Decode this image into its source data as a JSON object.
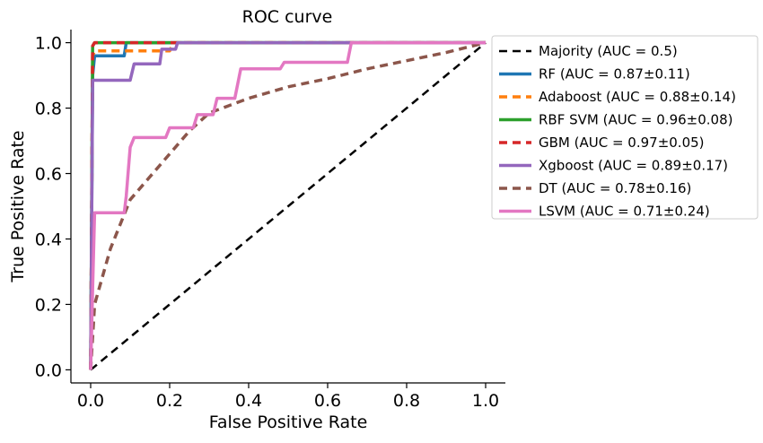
{
  "chart_data": {
    "type": "line",
    "title": "ROC curve",
    "xlabel": "False Positive Rate",
    "ylabel": "True Positive Rate",
    "xlim": [
      -0.05,
      1.05
    ],
    "ylim": [
      -0.04,
      1.04
    ],
    "xticks": [
      0.0,
      0.2,
      0.4,
      0.6,
      0.8,
      1.0
    ],
    "yticks": [
      0.0,
      0.2,
      0.4,
      0.6,
      0.8,
      1.0
    ],
    "xtick_labels": [
      "0.0",
      "0.2",
      "0.4",
      "0.6",
      "0.8",
      "1.0"
    ],
    "ytick_labels": [
      "0.0",
      "0.2",
      "0.4",
      "0.6",
      "0.8",
      "1.0"
    ],
    "grid": false,
    "legend_position": "outside-right",
    "series": [
      {
        "name": "Majority (AUC = 0.5)",
        "color": "#000000",
        "style": "dashed",
        "points": [
          [
            0,
            0
          ],
          [
            1,
            1
          ]
        ]
      },
      {
        "name": "RF (AUC = 0.87±0.11)",
        "color": "#1f77b4",
        "style": "solid",
        "points": [
          [
            0,
            0
          ],
          [
            0.005,
            0.9
          ],
          [
            0.01,
            0.96
          ],
          [
            0.085,
            0.96
          ],
          [
            0.09,
            1.0
          ],
          [
            1.0,
            1.0
          ]
        ]
      },
      {
        "name": "Adaboost (AUC = 0.88±0.14)",
        "color": "#ff7f0e",
        "style": "dashed",
        "points": [
          [
            0,
            0
          ],
          [
            0.005,
            0.96
          ],
          [
            0.01,
            0.975
          ],
          [
            0.2,
            0.975
          ],
          [
            0.21,
            1.0
          ],
          [
            1.0,
            1.0
          ]
        ]
      },
      {
        "name": "RBF SVM (AUC = 0.96±0.08)",
        "color": "#2ca02c",
        "style": "solid",
        "points": [
          [
            0,
            0
          ],
          [
            0.005,
            0.99
          ],
          [
            0.01,
            1.0
          ],
          [
            1.0,
            1.0
          ]
        ]
      },
      {
        "name": "GBM (AUC = 0.97±0.05)",
        "color": "#d62728",
        "style": "dashed",
        "points": [
          [
            0,
            0
          ],
          [
            0.005,
            0.99
          ],
          [
            0.01,
            1.0
          ],
          [
            1.0,
            1.0
          ]
        ]
      },
      {
        "name": "Xgboost (AUC = 0.89±0.17)",
        "color": "#9467bd",
        "style": "solid",
        "points": [
          [
            0,
            0
          ],
          [
            0.005,
            0.885
          ],
          [
            0.1,
            0.885
          ],
          [
            0.11,
            0.935
          ],
          [
            0.175,
            0.935
          ],
          [
            0.18,
            0.98
          ],
          [
            0.215,
            0.98
          ],
          [
            0.22,
            1.0
          ],
          [
            1.0,
            1.0
          ]
        ]
      },
      {
        "name": "DT (AUC = 0.78±0.16)",
        "color": "#8c564b",
        "style": "dashed",
        "points": [
          [
            0,
            0
          ],
          [
            0.01,
            0.2
          ],
          [
            0.05,
            0.37
          ],
          [
            0.1,
            0.52
          ],
          [
            0.15,
            0.59
          ],
          [
            0.2,
            0.66
          ],
          [
            0.25,
            0.73
          ],
          [
            0.3,
            0.785
          ],
          [
            0.4,
            0.83
          ],
          [
            0.5,
            0.865
          ],
          [
            0.6,
            0.89
          ],
          [
            0.7,
            0.92
          ],
          [
            0.8,
            0.945
          ],
          [
            0.9,
            0.97
          ],
          [
            1.0,
            1.0
          ]
        ]
      },
      {
        "name": "LSVM (AUC = 0.71±0.24)",
        "color": "#e377c2",
        "style": "solid",
        "points": [
          [
            0,
            0
          ],
          [
            0.005,
            0.25
          ],
          [
            0.01,
            0.48
          ],
          [
            0.085,
            0.48
          ],
          [
            0.09,
            0.53
          ],
          [
            0.1,
            0.68
          ],
          [
            0.11,
            0.71
          ],
          [
            0.19,
            0.71
          ],
          [
            0.2,
            0.74
          ],
          [
            0.26,
            0.74
          ],
          [
            0.27,
            0.78
          ],
          [
            0.31,
            0.78
          ],
          [
            0.32,
            0.83
          ],
          [
            0.365,
            0.83
          ],
          [
            0.38,
            0.92
          ],
          [
            0.48,
            0.92
          ],
          [
            0.49,
            0.94
          ],
          [
            0.65,
            0.94
          ],
          [
            0.66,
            1.0
          ],
          [
            1.0,
            1.0
          ]
        ]
      }
    ]
  }
}
